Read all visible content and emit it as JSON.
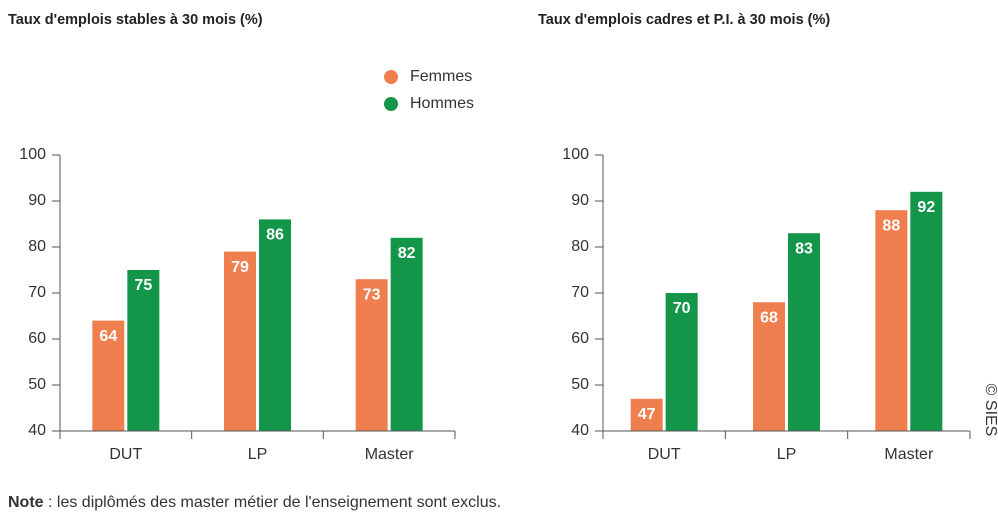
{
  "chart_data": [
    {
      "type": "bar",
      "title": "Taux d'emplois stables à 30 mois (%)",
      "categories": [
        "DUT",
        "LP",
        "Master"
      ],
      "series": [
        {
          "name": "Femmes",
          "color": "#f07f4f",
          "values": [
            64,
            79,
            73
          ]
        },
        {
          "name": "Hommes",
          "color": "#13964a",
          "values": [
            75,
            86,
            82
          ]
        }
      ],
      "ylim": [
        40,
        100
      ],
      "yticks": [
        40,
        50,
        60,
        70,
        80,
        90,
        100
      ]
    },
    {
      "type": "bar",
      "title": "Taux d'emplois cadres et P.I. à 30 mois (%)",
      "categories": [
        "DUT",
        "LP",
        "Master"
      ],
      "series": [
        {
          "color": "#f07f4f",
          "values": [
            47,
            68,
            88
          ]
        },
        {
          "color": "#13964a",
          "values": [
            70,
            83,
            92
          ]
        }
      ],
      "ylim": [
        40,
        100
      ],
      "yticks": [
        40,
        50,
        60,
        70,
        80,
        90,
        100
      ]
    }
  ],
  "note": {
    "label": "Note",
    "text": " : les diplômés des master métier de l'enseignement sont exclus."
  },
  "source": "© SIES"
}
